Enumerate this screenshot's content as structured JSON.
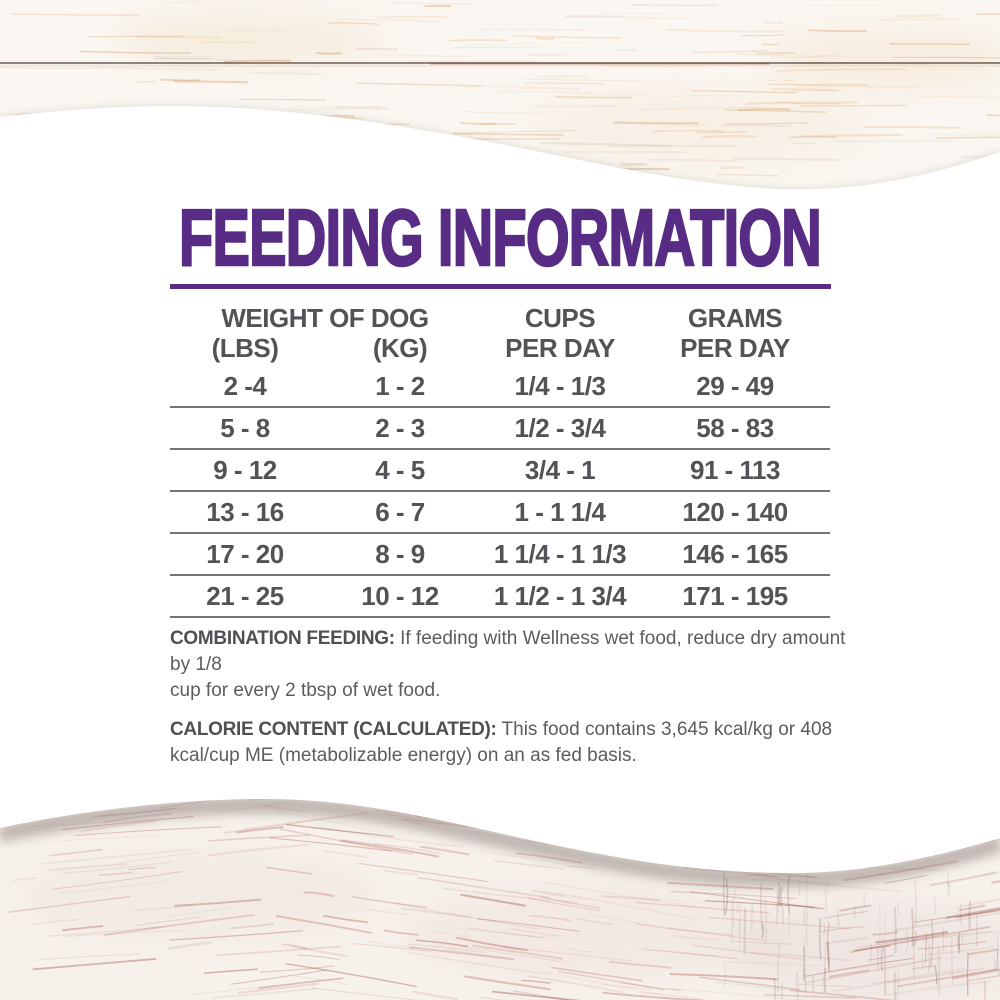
{
  "title": "FEEDING INFORMATION",
  "colors": {
    "brand_purple": "#582c85",
    "table_text": "#525356",
    "line": "#737578",
    "note_label": "#4f5053",
    "note_text": "#5b5c5f"
  },
  "table": {
    "headers": {
      "weight_group": "WEIGHT OF DOG",
      "col_lbs": "(LBS)",
      "col_kg": "(KG)",
      "col_cups": [
        "CUPS",
        "PER DAY"
      ],
      "col_grams": [
        "GRAMS",
        "PER DAY"
      ]
    },
    "rows": [
      {
        "lbs": "2 -4",
        "kg": "1 - 2",
        "cups": "1/4 - 1/3",
        "grams": "29 - 49"
      },
      {
        "lbs": "5 - 8",
        "kg": "2 - 3",
        "cups": "1/2 - 3/4",
        "grams": "58 - 83"
      },
      {
        "lbs": "9 - 12",
        "kg": "4 - 5",
        "cups": "3/4 - 1",
        "grams": "91 - 113"
      },
      {
        "lbs": "13 - 16",
        "kg": "6 - 7",
        "cups": "1 - 1 1/4",
        "grams": "120 - 140"
      },
      {
        "lbs": "17 - 20",
        "kg": "8 - 9",
        "cups": "1 1/4 - 1 1/3",
        "grams": "146 - 165"
      },
      {
        "lbs": "21 - 25",
        "kg": "10 - 12",
        "cups": "1 1/2 - 1 3/4",
        "grams": "171 - 195"
      }
    ]
  },
  "notes": [
    {
      "label": "COMBINATION FEEDING:",
      "lines": [
        "If feeding with Wellness wet food, reduce dry amount by 1/8",
        "cup for every 2 tbsp of wet food."
      ]
    },
    {
      "label": "CALORIE CONTENT (CALCULATED):",
      "lines": [
        "This food contains 3,645 kcal/kg or 408",
        "kcal/cup ME (metabolizable energy) on an as fed basis."
      ]
    }
  ]
}
